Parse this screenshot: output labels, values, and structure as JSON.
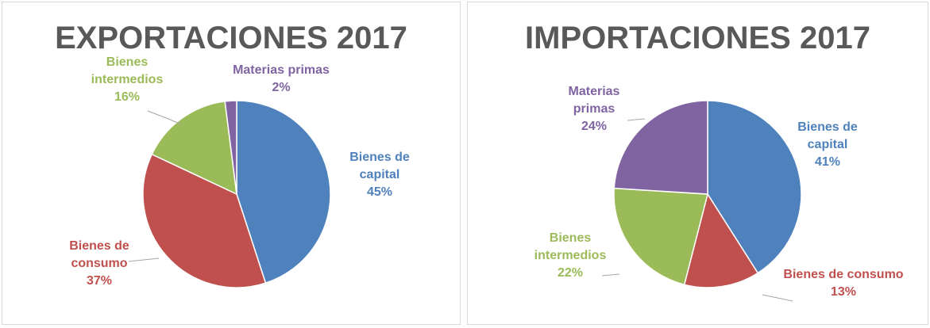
{
  "chart_data": [
    {
      "type": "pie",
      "title": "EXPORTACIONES 2017",
      "categories": [
        "Bienes de capital",
        "Bienes de consumo",
        "Bienes intermedios",
        "Materias primas"
      ],
      "values": [
        45,
        37,
        16,
        2
      ],
      "value_labels": [
        "45%",
        "37%",
        "16%",
        "2%"
      ],
      "colors": [
        "#4f81bd",
        "#c0504d",
        "#9bbb59",
        "#8064a2"
      ]
    },
    {
      "type": "pie",
      "title": "IMPORTACIONES 2017",
      "categories": [
        "Bienes de capital",
        "Bienes de consumo",
        "Bienes intermedios",
        "Materias primas"
      ],
      "values": [
        41,
        13,
        22,
        24
      ],
      "value_labels": [
        "41%",
        "13%",
        "22%",
        "24%"
      ],
      "colors": [
        "#4f81bd",
        "#c0504d",
        "#9bbb59",
        "#8064a2"
      ]
    }
  ]
}
